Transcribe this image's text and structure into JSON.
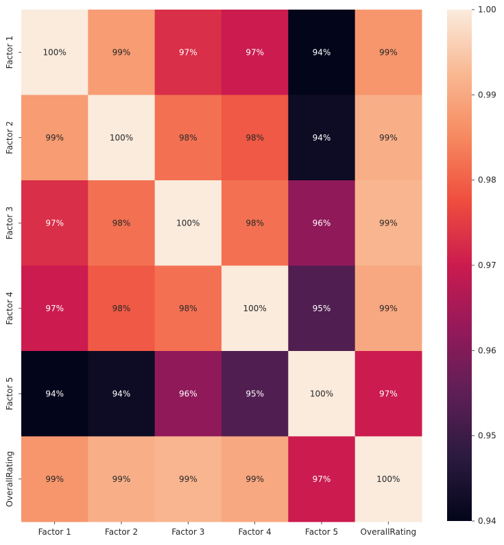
{
  "chart_data": {
    "type": "heatmap",
    "title": "",
    "xlabel": "",
    "ylabel": "",
    "row_labels": [
      "Factor 1",
      "Factor 2",
      "Factor 3",
      "Factor 4",
      "Factor 5",
      "OverallRating"
    ],
    "col_labels": [
      "Factor 1",
      "Factor 2",
      "Factor 3",
      "Factor 4",
      "Factor 5",
      "OverallRating"
    ],
    "values": [
      [
        1.0,
        0.988,
        0.973,
        0.97,
        0.94,
        0.987
      ],
      [
        0.988,
        1.0,
        0.982,
        0.979,
        0.942,
        0.991
      ],
      [
        0.973,
        0.982,
        1.0,
        0.982,
        0.962,
        0.992
      ],
      [
        0.97,
        0.979,
        0.982,
        1.0,
        0.953,
        0.99
      ],
      [
        0.94,
        0.942,
        0.962,
        0.953,
        1.0,
        0.97
      ],
      [
        0.987,
        0.991,
        0.992,
        0.99,
        0.97,
        1.0
      ]
    ],
    "annotations": [
      [
        "100%",
        "99%",
        "97%",
        "97%",
        "94%",
        "99%"
      ],
      [
        "99%",
        "100%",
        "98%",
        "98%",
        "94%",
        "99%"
      ],
      [
        "97%",
        "98%",
        "100%",
        "98%",
        "96%",
        "99%"
      ],
      [
        "97%",
        "98%",
        "98%",
        "100%",
        "95%",
        "99%"
      ],
      [
        "94%",
        "94%",
        "96%",
        "95%",
        "100%",
        "97%"
      ],
      [
        "99%",
        "99%",
        "99%",
        "99%",
        "97%",
        "100%"
      ]
    ],
    "colorbar": {
      "vmin": 0.94,
      "vmax": 1.0,
      "ticks": [
        0.94,
        0.95,
        0.96,
        0.97,
        0.98,
        0.99,
        1.0
      ],
      "tick_labels": [
        "0.94",
        "0.95",
        "0.96",
        "0.97",
        "0.98",
        "0.99",
        "1.00"
      ]
    },
    "colormap": "rocket",
    "colormap_stops": [
      "#03051a",
      "#2b1a3f",
      "#5e1f56",
      "#94195a",
      "#cb1b4f",
      "#ef4d3e",
      "#f6895f",
      "#f9b892",
      "#faebdd"
    ],
    "text_color_light": "#ffffff",
    "text_color_dark": "#262626"
  }
}
